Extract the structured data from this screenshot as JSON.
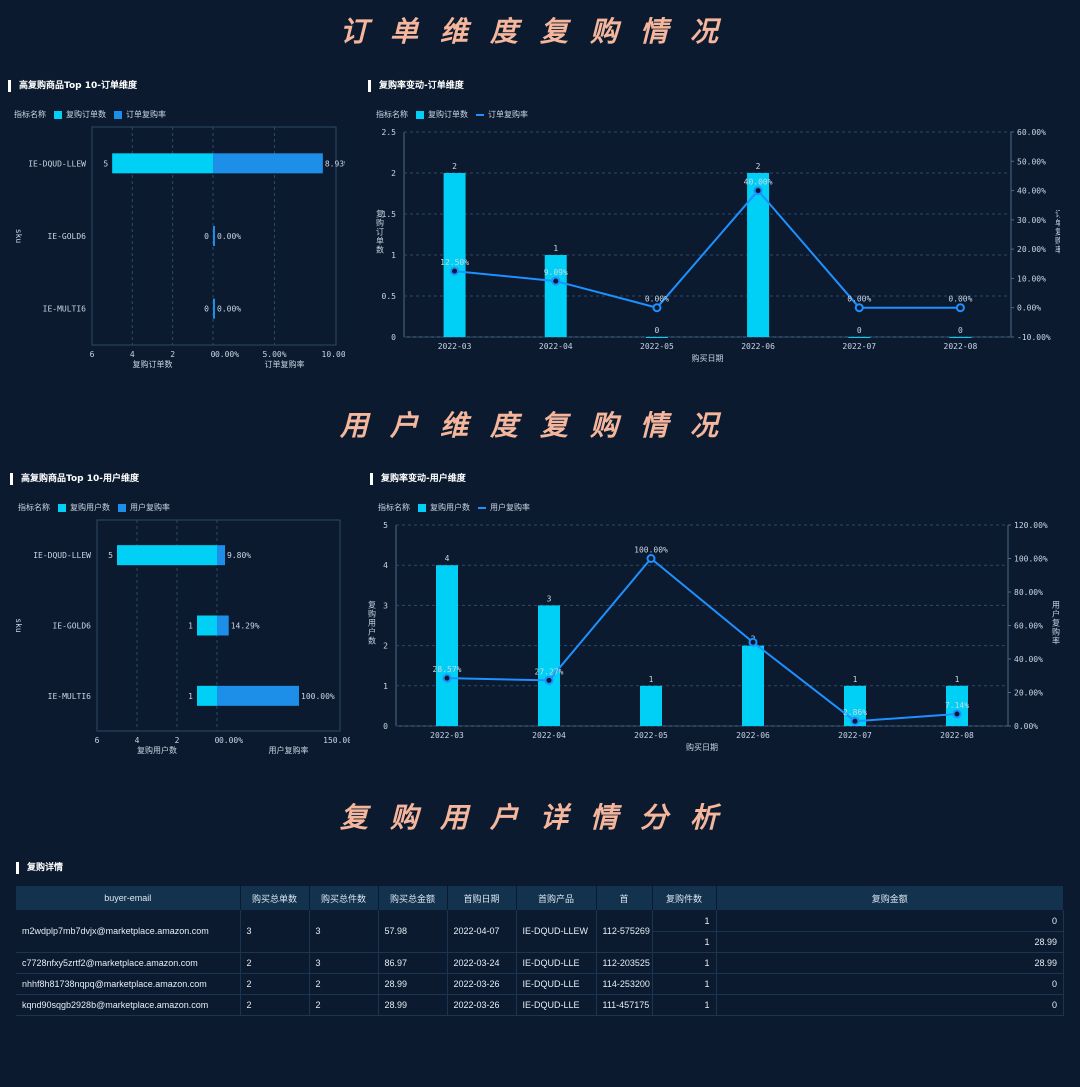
{
  "sections": {
    "order": "订单维度复购情况",
    "user": "用户维度复购情况",
    "detail": "复购用户详情分析"
  },
  "panels": {
    "top10_order": {
      "title": "高复购商品Top 10-订单维度",
      "legend_label": "指标名称",
      "legend": [
        "复购订单数",
        "订单复购率"
      ],
      "y_axis_label": "sku",
      "left_axis_label": "复购订单数",
      "right_axis_label": "订单复购率",
      "left_ticks": [
        "6",
        "4",
        "2",
        "0"
      ],
      "right_ticks": [
        "0.00%",
        "5.00%",
        "10.00%"
      ]
    },
    "trend_order": {
      "title": "复购率变动-订单维度",
      "legend_label": "指标名称",
      "legend": [
        "复购订单数",
        "订单复购率"
      ],
      "y_left_label": "复购订单数",
      "y_right_label": "订单复购率",
      "x_label": "购买日期",
      "left_ticks": [
        "0",
        "0.5",
        "1",
        "1.5",
        "2",
        "2.5"
      ],
      "right_ticks": [
        "-10.00%",
        "0.00%",
        "10.00%",
        "20.00%",
        "30.00%",
        "40.00%",
        "50.00%",
        "60.00%"
      ]
    },
    "top10_user": {
      "title": "高复购商品Top 10-用户维度",
      "legend_label": "指标名称",
      "legend": [
        "复购用户数",
        "用户复购率"
      ],
      "y_axis_label": "sku",
      "left_axis_label": "复购用户数",
      "right_axis_label": "用户复购率",
      "left_ticks": [
        "6",
        "4",
        "2",
        "0"
      ],
      "right_ticks": [
        "0.00%",
        "150.00%"
      ]
    },
    "trend_user": {
      "title": "复购率变动-用户维度",
      "legend_label": "指标名称",
      "legend": [
        "复购用户数",
        "用户复购率"
      ],
      "y_left_label": "复购用户数",
      "y_right_label": "用户复购率",
      "x_label": "购买日期",
      "left_ticks": [
        "0",
        "1",
        "2",
        "3",
        "4",
        "5"
      ],
      "right_ticks": [
        "0.00%",
        "20.00%",
        "40.00%",
        "60.00%",
        "80.00%",
        "100.00%",
        "120.00%"
      ]
    },
    "detail": {
      "title": "复购详情"
    }
  },
  "colors": {
    "bar": "#00d0f5",
    "rate_bar": "#1e8fe8",
    "line": "#1e90ff",
    "bg": "#0b1a2e"
  },
  "chart_data": [
    {
      "type": "bar",
      "orientation": "horizontal-butterfly",
      "title": "高复购商品Top 10-订单维度",
      "categories": [
        "IE-DQUD-LLEW",
        "IE-GOLD6",
        "IE-MULTI6"
      ],
      "series": [
        {
          "name": "复购订单数",
          "values": [
            5,
            0,
            0
          ]
        },
        {
          "name": "订单复购率",
          "values": [
            8.93,
            0.0,
            0.0
          ],
          "labels": [
            "8.93%",
            "0.00%",
            "0.00%"
          ]
        }
      ],
      "left_xlim": [
        0,
        6
      ],
      "right_xlim": [
        0,
        10
      ]
    },
    {
      "type": "bar",
      "combo": "bar+line",
      "title": "复购率变动-订单维度",
      "categories": [
        "2022-03",
        "2022-04",
        "2022-05",
        "2022-06",
        "2022-07",
        "2022-08"
      ],
      "series": [
        {
          "name": "复购订单数",
          "values": [
            2,
            1,
            0,
            2,
            0,
            0
          ]
        },
        {
          "name": "订单复购率",
          "values": [
            12.5,
            9.09,
            0.0,
            40.0,
            0.0,
            0.0
          ],
          "labels": [
            "12.50%",
            "9.09%",
            "0.00%",
            "40.00%",
            "0.00%",
            "0.00%"
          ]
        }
      ],
      "ylim": [
        0,
        2.5
      ],
      "y2lim": [
        -10,
        60
      ]
    },
    {
      "type": "bar",
      "orientation": "horizontal-butterfly",
      "title": "高复购商品Top 10-用户维度",
      "categories": [
        "IE-DQUD-LLEW",
        "IE-GOLD6",
        "IE-MULTI6"
      ],
      "series": [
        {
          "name": "复购用户数",
          "values": [
            5,
            1,
            1
          ]
        },
        {
          "name": "用户复购率",
          "values": [
            9.8,
            14.29,
            100.0
          ],
          "labels": [
            "9.80%",
            "14.29%",
            "100.00%"
          ]
        }
      ],
      "left_xlim": [
        0,
        6
      ],
      "right_xlim": [
        0,
        150
      ]
    },
    {
      "type": "bar",
      "combo": "bar+line",
      "title": "复购率变动-用户维度",
      "categories": [
        "2022-03",
        "2022-04",
        "2022-05",
        "2022-06",
        "2022-07",
        "2022-08"
      ],
      "series": [
        {
          "name": "复购用户数",
          "values": [
            4,
            3,
            1,
            2,
            1,
            1
          ]
        },
        {
          "name": "用户复购率",
          "values": [
            28.57,
            27.27,
            100.0,
            50.0,
            2.86,
            7.14
          ],
          "labels": [
            "28.57%",
            "27.27%",
            "100.00%",
            "",
            "2.86%",
            "7.14%"
          ]
        }
      ],
      "ylim": [
        0,
        5
      ],
      "y2lim": [
        0,
        120
      ]
    }
  ],
  "table": {
    "headers": [
      "buyer-email",
      "购买总单数",
      "购买总件数",
      "购买总金额",
      "首购日期",
      "首购产品",
      "首",
      "复购件数",
      "复购金额"
    ],
    "rows": [
      {
        "email": "m2wdplp7mb7dvjx@marketplace.amazon.com",
        "orders": "3",
        "items": "3",
        "amount": "57.98",
        "date": "2022-04-07",
        "product": "IE-DQUD-LLEW",
        "order_id": "112-575269",
        "repeat": [
          {
            "qty": "1",
            "amt": "0"
          },
          {
            "qty": "1",
            "amt": "28.99"
          }
        ]
      },
      {
        "email": "c7728nfxy5zrtf2@marketplace.amazon.com",
        "orders": "2",
        "items": "3",
        "amount": "86.97",
        "date": "2022-03-24",
        "product": "IE-DQUD-LLE",
        "order_id": "112-203525",
        "repeat": [
          {
            "qty": "1",
            "amt": "28.99"
          }
        ]
      },
      {
        "email": "nhhf8h81738nqpq@marketplace.amazon.com",
        "orders": "2",
        "items": "2",
        "amount": "28.99",
        "date": "2022-03-26",
        "product": "IE-DQUD-LLE",
        "order_id": "114-253200",
        "repeat": [
          {
            "qty": "1",
            "amt": "0"
          }
        ]
      },
      {
        "email": "kqnd90sqgb2928b@marketplace.amazon.com",
        "orders": "2",
        "items": "2",
        "amount": "28.99",
        "date": "2022-03-26",
        "product": "IE-DQUD-LLE",
        "order_id": "111-457175",
        "repeat": [
          {
            "qty": "1",
            "amt": "0"
          }
        ]
      }
    ]
  }
}
